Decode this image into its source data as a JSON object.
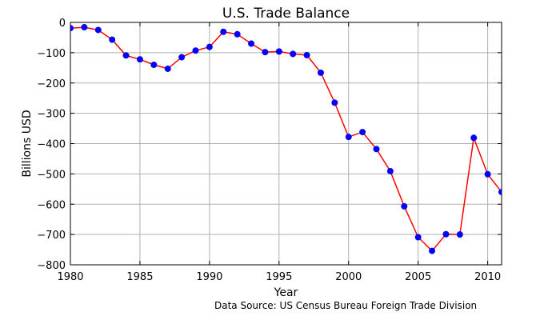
{
  "chart_data": {
    "type": "line",
    "title": "U.S. Trade Balance",
    "xlabel": "Year",
    "ylabel": "Billions USD",
    "xlim": [
      1980,
      2011
    ],
    "ylim": [
      -800,
      0
    ],
    "x_ticks": [
      1980,
      1985,
      1990,
      1995,
      2000,
      2005,
      2010
    ],
    "y_ticks": [
      0,
      -100,
      -200,
      -300,
      -400,
      -500,
      -600,
      -700,
      -800
    ],
    "grid": true,
    "line_color": "#ff0000",
    "marker_color": "#0000ff",
    "series": [
      {
        "x": [
          1980,
          1981,
          1982,
          1983,
          1984,
          1985,
          1986,
          1987,
          1988,
          1989,
          1990,
          1991,
          1992,
          1993,
          1994,
          1995,
          1996,
          1997,
          1998,
          1999,
          2000,
          2001,
          2002,
          2003,
          2004,
          2005,
          2006,
          2007,
          2008,
          2009,
          2010,
          2011
        ],
        "values": [
          -19,
          -16,
          -25,
          -57,
          -109,
          -122,
          -140,
          -153,
          -115,
          -93,
          -81,
          -31,
          -39,
          -70,
          -98,
          -96,
          -104,
          -108,
          -166,
          -265,
          -378,
          -362,
          -418,
          -491,
          -607,
          -709,
          -754,
          -699,
          -700,
          -381,
          -501,
          -560
        ]
      }
    ]
  },
  "source_note": "Data Source: US Census Bureau Foreign Trade Division"
}
